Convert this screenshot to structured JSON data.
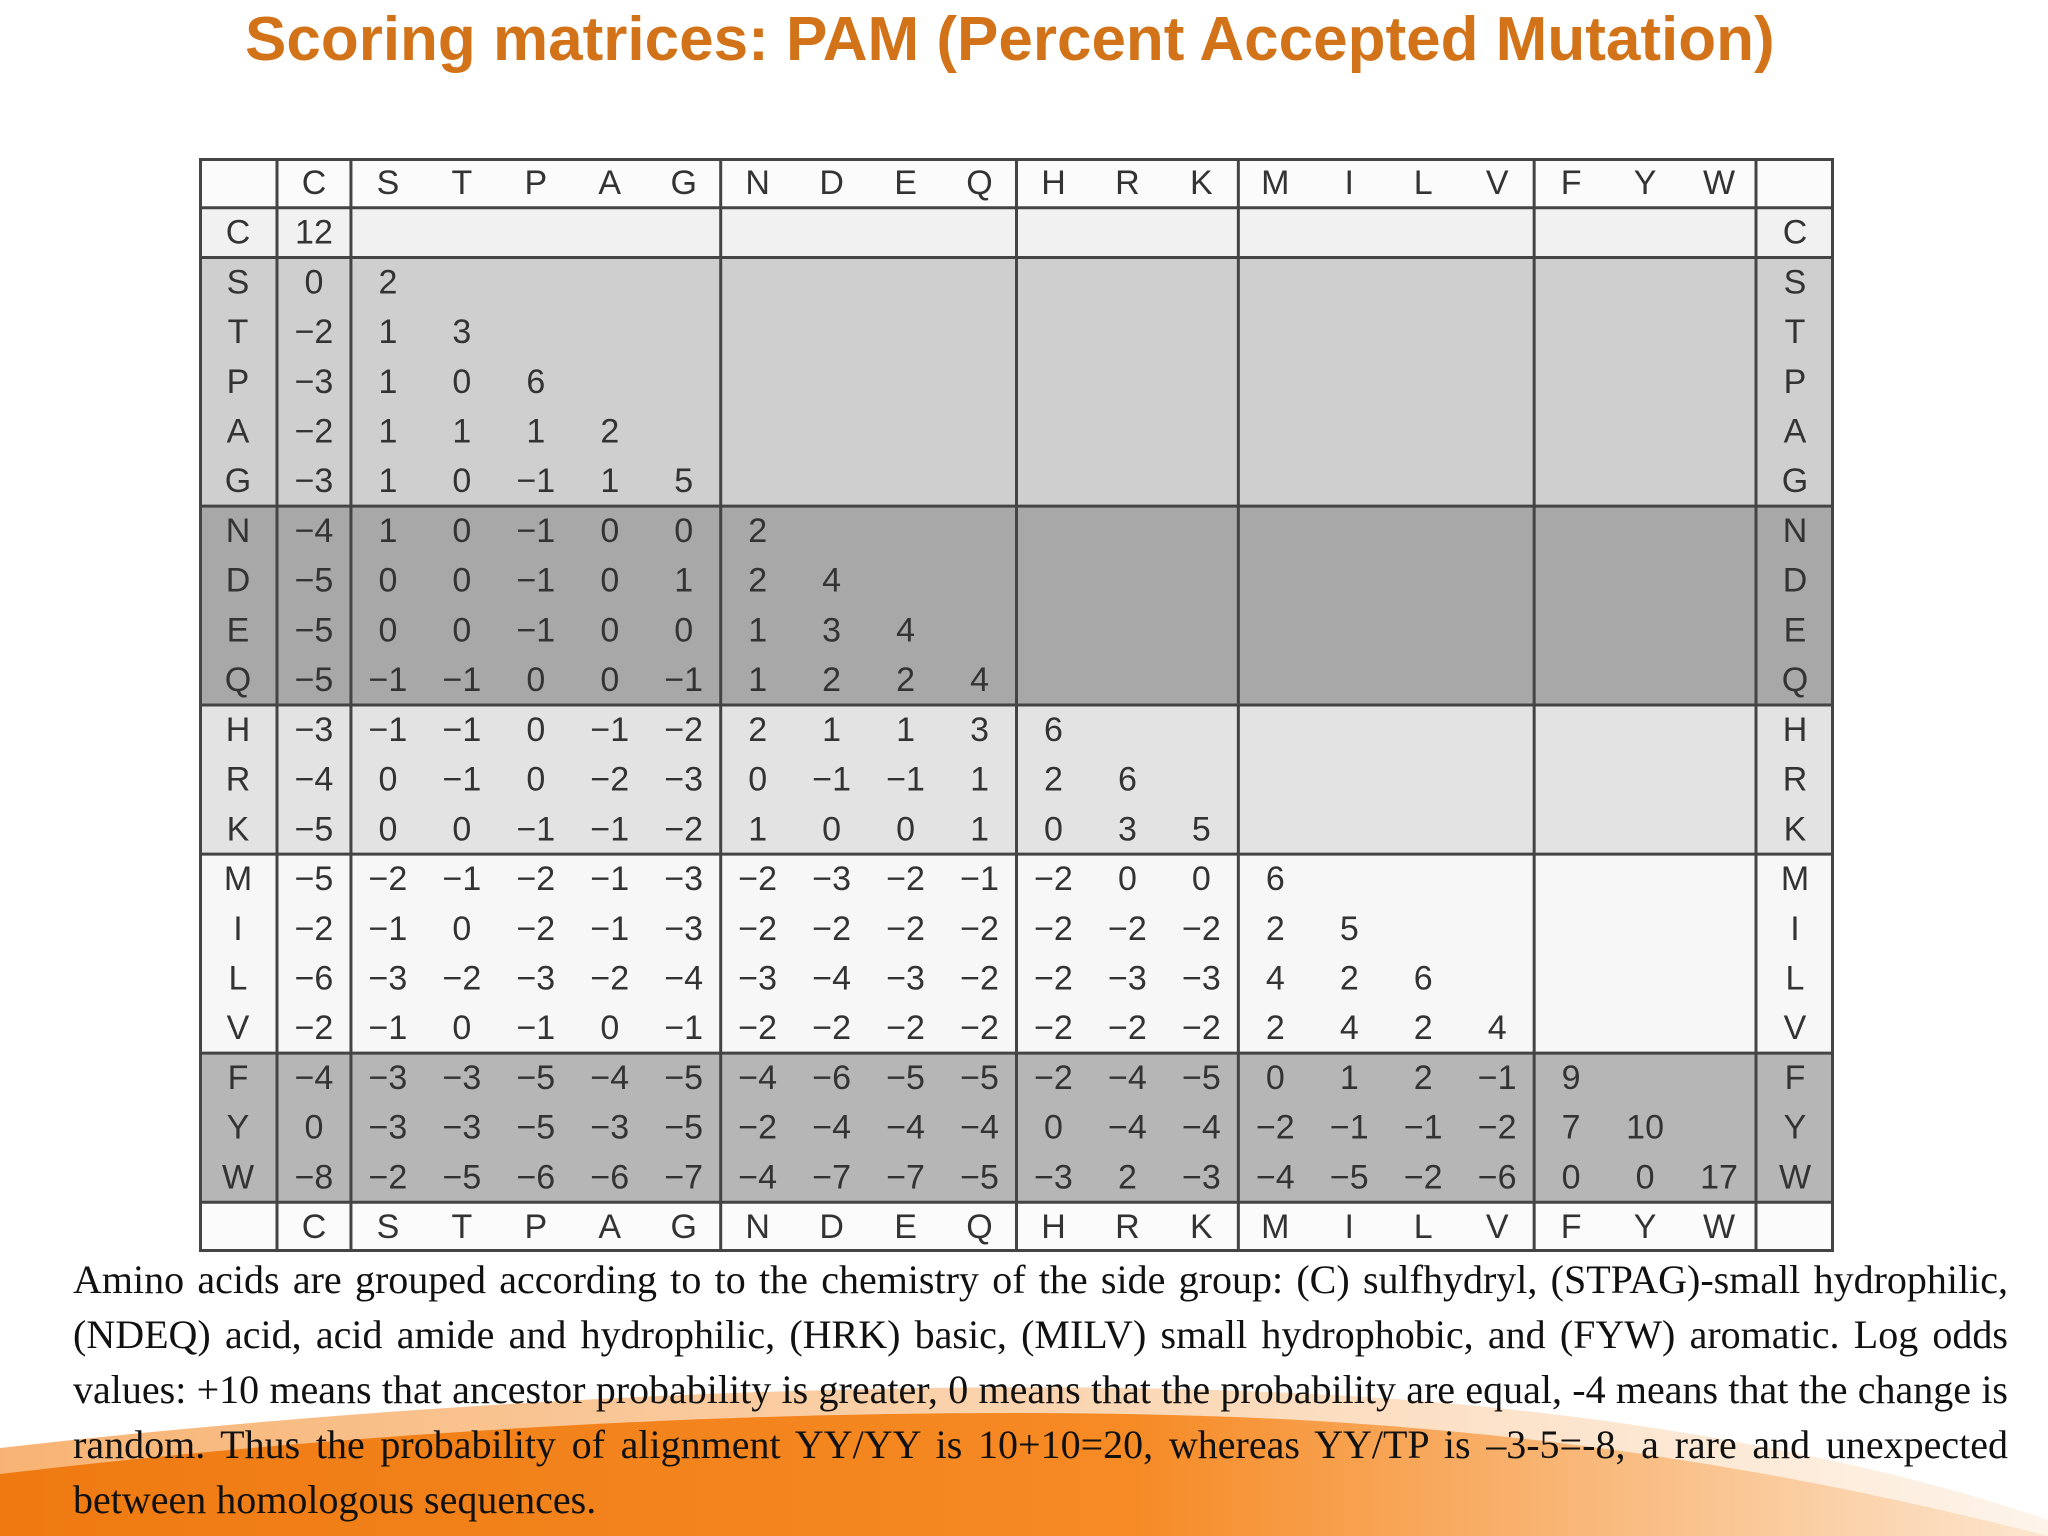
{
  "slide": {
    "title": "Scoring matrices: PAM (Percent Accepted Mutation)",
    "caption": "Amino acids are grouped according to to the chemistry of the side group: (C) sulfhydryl, (STPAG)-small hydrophilic, (NDEQ) acid, acid amide and hydrophilic, (HRK) basic, (MILV) small hydrophobic, and (FYW) aromatic. Log odds values: +10 means that ancestor probability is greater, 0 means that the probability are equal, -4 means that the change is random. Thus the probability of alignment YY/YY is 10+10=20, whereas YY/TP is –3-5=-8, a rare and unexpected between homologous sequences."
  },
  "matrix": {
    "amino_acids": [
      "C",
      "S",
      "T",
      "P",
      "A",
      "G",
      "N",
      "D",
      "E",
      "Q",
      "H",
      "R",
      "K",
      "M",
      "I",
      "L",
      "V",
      "F",
      "Y",
      "W"
    ],
    "groups": [
      1,
      5,
      4,
      3,
      4,
      3
    ],
    "group_shades": [
      "#f1f1f1",
      "#cfcfcf",
      "#a8a8a8",
      "#e3e3e3",
      "#f7f7f7",
      "#b6b6b6"
    ],
    "rows": [
      [
        "12"
      ],
      [
        "0",
        "2"
      ],
      [
        "−2",
        "1",
        "3"
      ],
      [
        "−3",
        "1",
        "0",
        "6"
      ],
      [
        "−2",
        "1",
        "1",
        "1",
        "2"
      ],
      [
        "−3",
        "1",
        "0",
        "−1",
        "1",
        "5"
      ],
      [
        "−4",
        "1",
        "0",
        "−1",
        "0",
        "0",
        "2"
      ],
      [
        "−5",
        "0",
        "0",
        "−1",
        "0",
        "1",
        "2",
        "4"
      ],
      [
        "−5",
        "0",
        "0",
        "−1",
        "0",
        "0",
        "1",
        "3",
        "4"
      ],
      [
        "−5",
        "−1",
        "−1",
        "0",
        "0",
        "−1",
        "1",
        "2",
        "2",
        "4"
      ],
      [
        "−3",
        "−1",
        "−1",
        "0",
        "−1",
        "−2",
        "2",
        "1",
        "1",
        "3",
        "6"
      ],
      [
        "−4",
        "0",
        "−1",
        "0",
        "−2",
        "−3",
        "0",
        "−1",
        "−1",
        "1",
        "2",
        "6"
      ],
      [
        "−5",
        "0",
        "0",
        "−1",
        "−1",
        "−2",
        "1",
        "0",
        "0",
        "1",
        "0",
        "3",
        "5"
      ],
      [
        "−5",
        "−2",
        "−1",
        "−2",
        "−1",
        "−3",
        "−2",
        "−3",
        "−2",
        "−1",
        "−2",
        "0",
        "0",
        "6"
      ],
      [
        "−2",
        "−1",
        "0",
        "−2",
        "−1",
        "−3",
        "−2",
        "−2",
        "−2",
        "−2",
        "−2",
        "−2",
        "−2",
        "2",
        "5"
      ],
      [
        "−6",
        "−3",
        "−2",
        "−3",
        "−2",
        "−4",
        "−3",
        "−4",
        "−3",
        "−2",
        "−2",
        "−3",
        "−3",
        "4",
        "2",
        "6"
      ],
      [
        "−2",
        "−1",
        "0",
        "−1",
        "0",
        "−1",
        "−2",
        "−2",
        "−2",
        "−2",
        "−2",
        "−2",
        "−2",
        "2",
        "4",
        "2",
        "4"
      ],
      [
        "−4",
        "−3",
        "−3",
        "−5",
        "−4",
        "−5",
        "−4",
        "−6",
        "−5",
        "−5",
        "−2",
        "−4",
        "−5",
        "0",
        "1",
        "2",
        "−1",
        "9"
      ],
      [
        "0",
        "−3",
        "−3",
        "−5",
        "−3",
        "−5",
        "−2",
        "−4",
        "−4",
        "−4",
        "0",
        "−4",
        "−4",
        "−2",
        "−1",
        "−1",
        "−2",
        "7",
        "10"
      ],
      [
        "−8",
        "−2",
        "−5",
        "−6",
        "−6",
        "−7",
        "−4",
        "−7",
        "−7",
        "−5",
        "−3",
        "2",
        "−3",
        "−4",
        "−5",
        "−2",
        "−6",
        "0",
        "0",
        "17"
      ]
    ]
  }
}
